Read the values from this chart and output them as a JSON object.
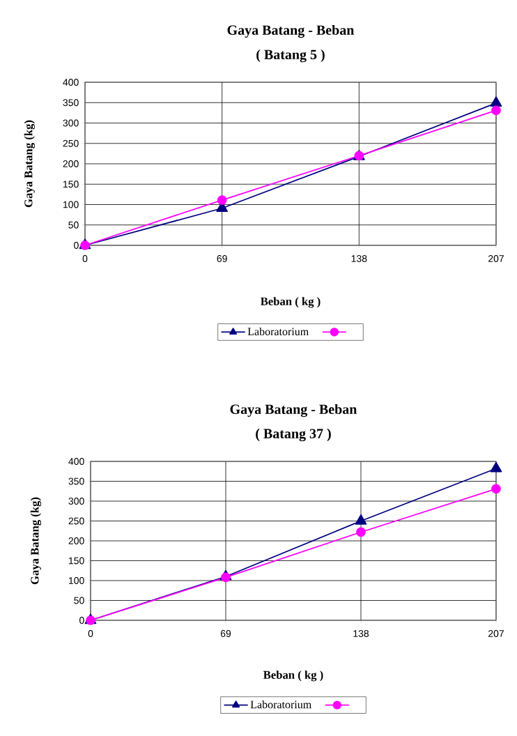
{
  "chart_data": [
    {
      "type": "line",
      "title": "Gaya Batang - Beban",
      "subtitle": "( Batang 5 )",
      "xlabel": "Beban ( kg )",
      "ylabel": "Gaya Batang (kg)",
      "x": [
        0,
        69,
        138,
        207
      ],
      "xlim": [
        0,
        207
      ],
      "xticks": [
        0,
        69,
        138,
        207
      ],
      "ylim": [
        0,
        400
      ],
      "yticks": [
        0,
        50,
        100,
        150,
        200,
        250,
        300,
        350,
        400
      ],
      "grid": true,
      "legend": "bottom",
      "series": [
        {
          "name": "Laboratorium",
          "color": "#000080",
          "marker": "triangle",
          "values": [
            0,
            91,
            218,
            349
          ]
        },
        {
          "color": "#ff00ff",
          "marker": "circle",
          "values": [
            0,
            111,
            220,
            331
          ]
        }
      ]
    },
    {
      "type": "line",
      "title": "Gaya Batang - Beban",
      "subtitle": "( Batang 37 )",
      "xlabel": "Beban ( kg )",
      "ylabel": "Gaya Batang (kg)",
      "x": [
        0,
        69,
        138,
        207
      ],
      "xlim": [
        0,
        207
      ],
      "xticks": [
        0,
        69,
        138,
        207
      ],
      "ylim": [
        0,
        400
      ],
      "yticks": [
        0,
        50,
        100,
        150,
        200,
        250,
        300,
        350,
        400
      ],
      "grid": true,
      "legend": "bottom",
      "series": [
        {
          "name": "Laboratorium",
          "color": "#000080",
          "marker": "triangle",
          "values": [
            0,
            110,
            250,
            382
          ]
        },
        {
          "color": "#ff00ff",
          "marker": "circle",
          "values": [
            0,
            108,
            222,
            331
          ]
        }
      ]
    }
  ]
}
